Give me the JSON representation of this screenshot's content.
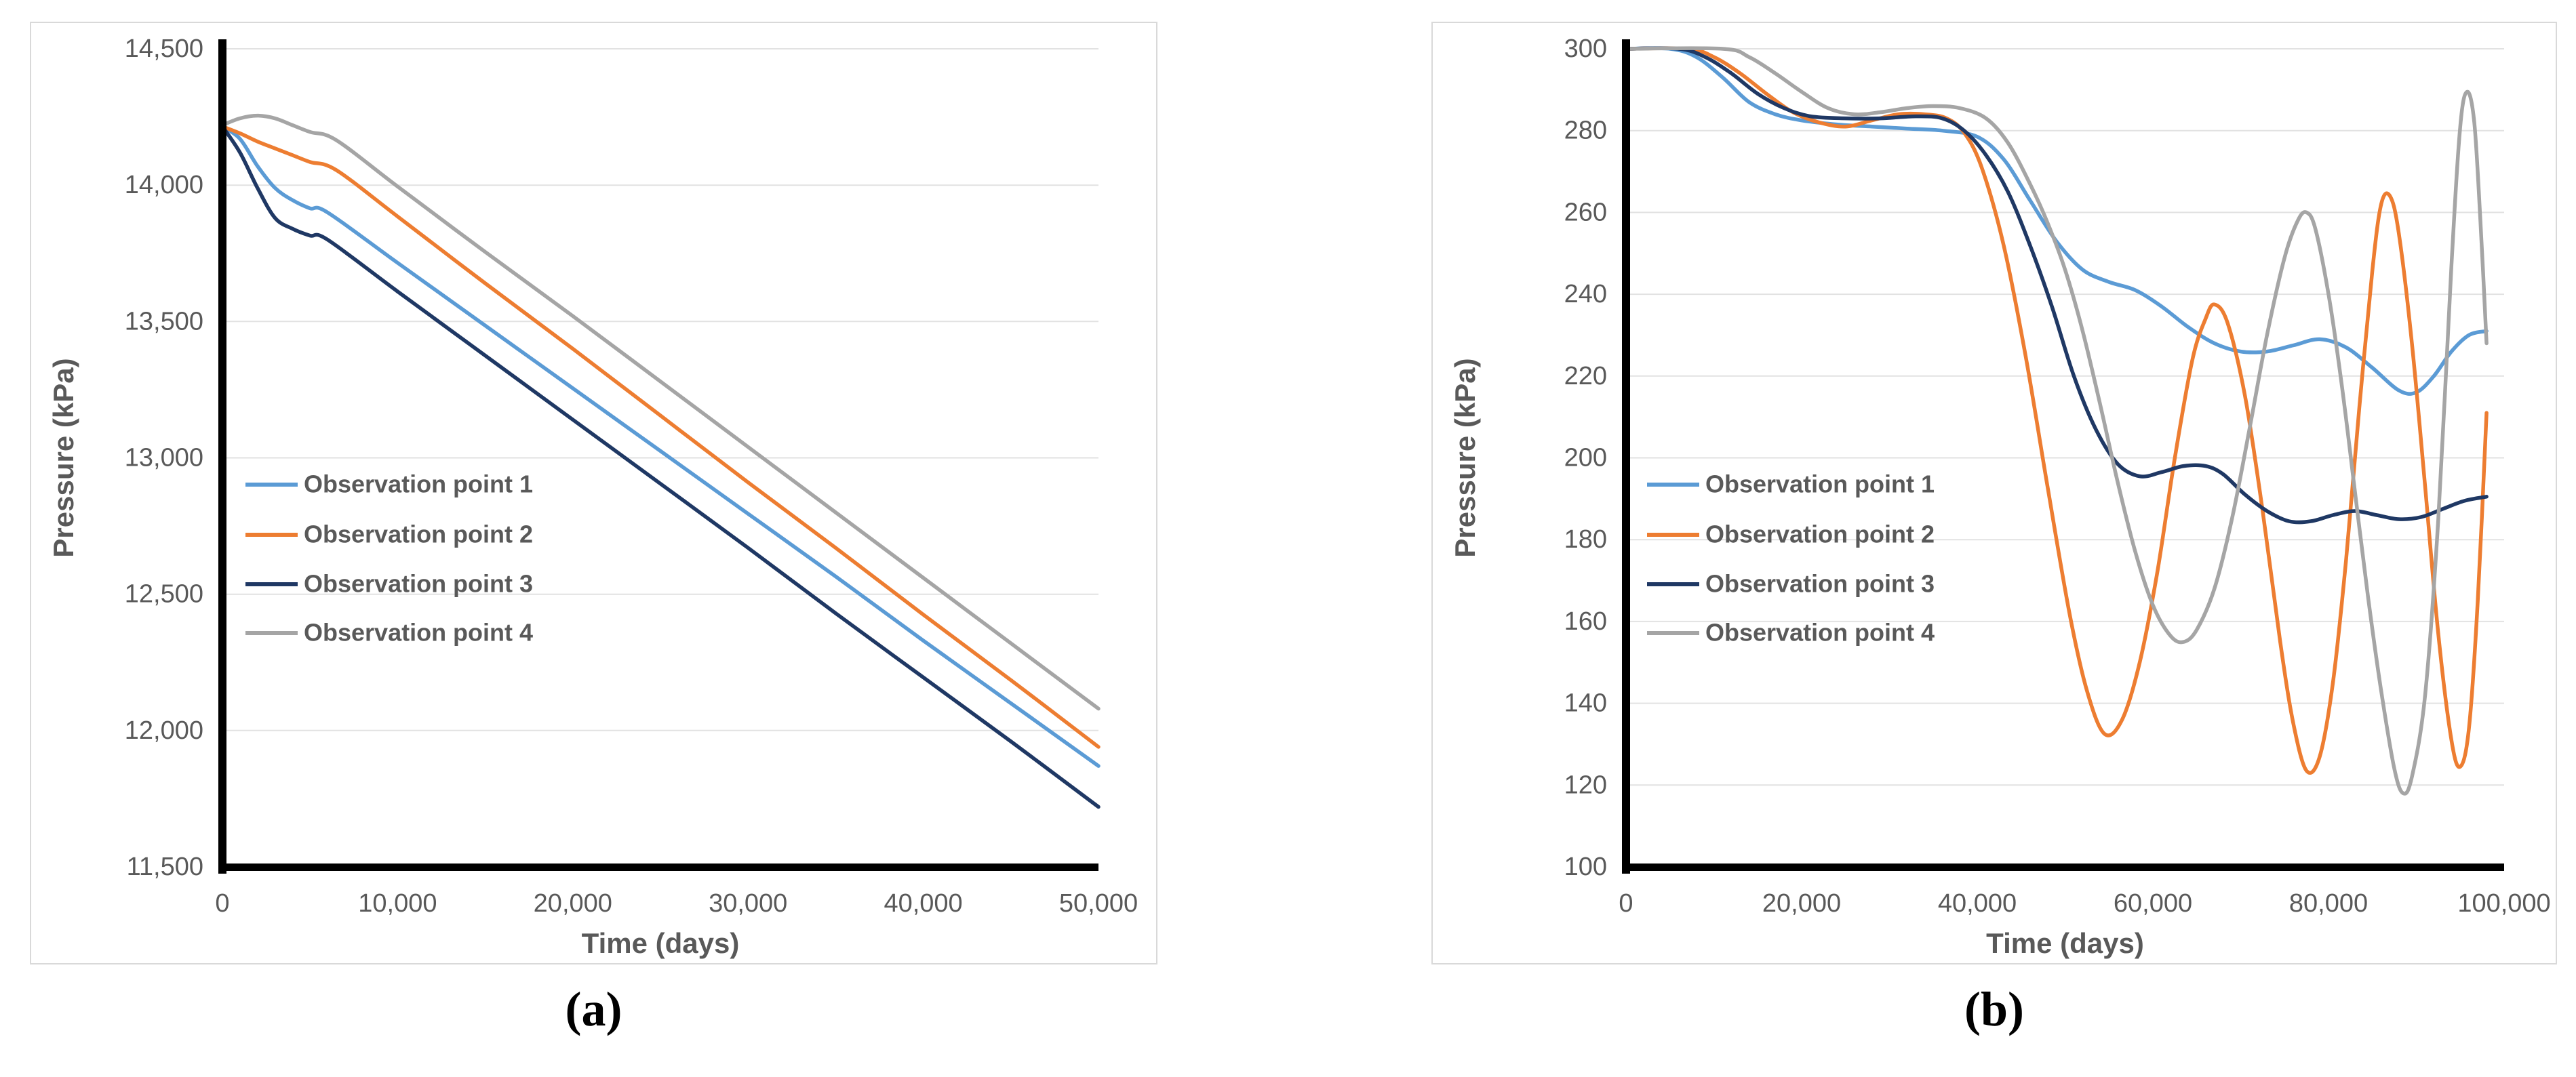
{
  "figure": {
    "captions": {
      "a": "(a)",
      "b": "(b)"
    }
  },
  "style": {
    "background": "#ffffff",
    "panel_border": "#d9d9d9",
    "axis_color": "#000000",
    "grid_color": "#e2e2e2",
    "tick_label_color": "#595959",
    "axis_title_color": "#595959",
    "legend_text_color": "#595959"
  },
  "chart_data": [
    {
      "id": "a",
      "type": "line",
      "title": "",
      "xlabel": "Time (days)",
      "ylabel": "Pressure (kPa)",
      "xlim": [
        0,
        50000
      ],
      "ylim": [
        11500,
        14500
      ],
      "grid": true,
      "legend_position": "inside-left",
      "x_ticks": [
        {
          "v": 0,
          "label": "0"
        },
        {
          "v": 10000,
          "label": "10,000"
        },
        {
          "v": 20000,
          "label": "20,000"
        },
        {
          "v": 30000,
          "label": "30,000"
        },
        {
          "v": 40000,
          "label": "40,000"
        },
        {
          "v": 50000,
          "label": "50,000"
        }
      ],
      "y_ticks": [
        {
          "v": 14500,
          "label": "14,500"
        },
        {
          "v": 14000,
          "label": "14,000"
        },
        {
          "v": 13500,
          "label": "13,500"
        },
        {
          "v": 13000,
          "label": "13,000"
        },
        {
          "v": 12500,
          "label": "12,500"
        },
        {
          "v": 12000,
          "label": "12,000"
        },
        {
          "v": 11500,
          "label": "11,500"
        }
      ],
      "series": [
        {
          "name": "Observation point 1",
          "color": "#5B9BD5",
          "points": [
            [
              0,
              14215
            ],
            [
              1000,
              14170
            ],
            [
              2000,
              14070
            ],
            [
              3000,
              13990
            ],
            [
              4000,
              13945
            ],
            [
              5000,
              13915
            ],
            [
              6000,
              13900
            ],
            [
              10000,
              13715
            ],
            [
              15000,
              13485
            ],
            [
              20000,
              13255
            ],
            [
              25000,
              13025
            ],
            [
              30000,
              12795
            ],
            [
              35000,
              12565
            ],
            [
              40000,
              12330
            ],
            [
              45000,
              12100
            ],
            [
              50000,
              11870
            ]
          ]
        },
        {
          "name": "Observation point 2",
          "color": "#ED7D31",
          "points": [
            [
              0,
              14215
            ],
            [
              1000,
              14190
            ],
            [
              2000,
              14160
            ],
            [
              3000,
              14135
            ],
            [
              4000,
              14110
            ],
            [
              5000,
              14085
            ],
            [
              6500,
              14055
            ],
            [
              10000,
              13885
            ],
            [
              15000,
              13640
            ],
            [
              20000,
              13400
            ],
            [
              25000,
              13155
            ],
            [
              30000,
              12910
            ],
            [
              35000,
              12670
            ],
            [
              40000,
              12425
            ],
            [
              45000,
              12185
            ],
            [
              50000,
              11940
            ]
          ]
        },
        {
          "name": "Observation point 3",
          "color": "#1F3864",
          "points": [
            [
              0,
              14215
            ],
            [
              1000,
              14120
            ],
            [
              2000,
              13990
            ],
            [
              3000,
              13880
            ],
            [
              4000,
              13840
            ],
            [
              5000,
              13815
            ],
            [
              6000,
              13800
            ],
            [
              10000,
              13610
            ],
            [
              15000,
              13375
            ],
            [
              20000,
              13140
            ],
            [
              25000,
              12905
            ],
            [
              30000,
              12670
            ],
            [
              35000,
              12430
            ],
            [
              40000,
              12195
            ],
            [
              45000,
              11960
            ],
            [
              50000,
              11720
            ]
          ]
        },
        {
          "name": "Observation point 4",
          "color": "#A5A5A5",
          "points": [
            [
              0,
              14220
            ],
            [
              1000,
              14245
            ],
            [
              2000,
              14255
            ],
            [
              3000,
              14245
            ],
            [
              4000,
              14220
            ],
            [
              5000,
              14195
            ],
            [
              6500,
              14165
            ],
            [
              10000,
              13995
            ],
            [
              15000,
              13755
            ],
            [
              20000,
              13520
            ],
            [
              25000,
              13280
            ],
            [
              30000,
              13040
            ],
            [
              35000,
              12800
            ],
            [
              40000,
              12560
            ],
            [
              45000,
              12320
            ],
            [
              50000,
              12080
            ]
          ]
        }
      ]
    },
    {
      "id": "b",
      "type": "line",
      "title": "",
      "xlabel": "Time (days)",
      "ylabel": "Pressure (kPa)",
      "xlim": [
        0,
        100000
      ],
      "ylim": [
        100,
        300
      ],
      "grid": true,
      "legend_position": "inside-left",
      "x_ticks": [
        {
          "v": 0,
          "label": "0"
        },
        {
          "v": 20000,
          "label": "20,000"
        },
        {
          "v": 40000,
          "label": "40,000"
        },
        {
          "v": 60000,
          "label": "60,000"
        },
        {
          "v": 80000,
          "label": "80,000"
        },
        {
          "v": 100000,
          "label": "100,000"
        }
      ],
      "y_ticks": [
        {
          "v": 300,
          "label": "300"
        },
        {
          "v": 280,
          "label": "280"
        },
        {
          "v": 260,
          "label": "260"
        },
        {
          "v": 240,
          "label": "240"
        },
        {
          "v": 220,
          "label": "220"
        },
        {
          "v": 200,
          "label": "200"
        },
        {
          "v": 180,
          "label": "180"
        },
        {
          "v": 160,
          "label": "160"
        },
        {
          "v": 140,
          "label": "140"
        },
        {
          "v": 120,
          "label": "120"
        },
        {
          "v": 100,
          "label": "100"
        }
      ],
      "series": [
        {
          "name": "Observation point 1",
          "color": "#5B9BD5",
          "points": [
            [
              0,
              300
            ],
            [
              5000,
              300
            ],
            [
              8000,
              298
            ],
            [
              11000,
              293
            ],
            [
              14000,
              287
            ],
            [
              17000,
              284
            ],
            [
              20000,
              282.5
            ],
            [
              24000,
              281.5
            ],
            [
              28000,
              281
            ],
            [
              32000,
              280.5
            ],
            [
              36000,
              280
            ],
            [
              40000,
              278.5
            ],
            [
              43000,
              273
            ],
            [
              46000,
              263
            ],
            [
              49000,
              253
            ],
            [
              52000,
              246
            ],
            [
              55000,
              243
            ],
            [
              58000,
              241
            ],
            [
              61000,
              237
            ],
            [
              64000,
              232
            ],
            [
              67000,
              228
            ],
            [
              70000,
              226
            ],
            [
              73000,
              226
            ],
            [
              76000,
              227.5
            ],
            [
              79000,
              229
            ],
            [
              82000,
              227
            ],
            [
              85000,
              222
            ],
            [
              88000,
              216.5
            ],
            [
              90000,
              216
            ],
            [
              92000,
              220
            ],
            [
              94000,
              226
            ],
            [
              96000,
              230
            ],
            [
              98000,
              231
            ]
          ]
        },
        {
          "name": "Observation point 2",
          "color": "#ED7D31",
          "points": [
            [
              0,
              300
            ],
            [
              7000,
              300
            ],
            [
              10000,
              298
            ],
            [
              13000,
              294
            ],
            [
              16000,
              289
            ],
            [
              19000,
              284.5
            ],
            [
              22000,
              282
            ],
            [
              25000,
              281
            ],
            [
              28000,
              282.5
            ],
            [
              31000,
              284
            ],
            [
              34000,
              284
            ],
            [
              36500,
              283
            ],
            [
              38500,
              279.5
            ],
            [
              40500,
              271
            ],
            [
              43000,
              252
            ],
            [
              45500,
              225
            ],
            [
              48000,
              193
            ],
            [
              50500,
              162
            ],
            [
              52500,
              143
            ],
            [
              54500,
              132.5
            ],
            [
              56500,
              136
            ],
            [
              58500,
              150
            ],
            [
              60500,
              172
            ],
            [
              62500,
              200
            ],
            [
              64500,
              224
            ],
            [
              66000,
              234
            ],
            [
              67000,
              237.5
            ],
            [
              68500,
              233
            ],
            [
              70500,
              215
            ],
            [
              72500,
              187
            ],
            [
              74500,
              155
            ],
            [
              76000,
              135
            ],
            [
              77500,
              123.5
            ],
            [
              79000,
              127
            ],
            [
              80500,
              145
            ],
            [
              82000,
              175
            ],
            [
              83500,
              212
            ],
            [
              85000,
              246
            ],
            [
              86000,
              262
            ],
            [
              87000,
              264
            ],
            [
              88000,
              255
            ],
            [
              89500,
              228
            ],
            [
              91000,
              193
            ],
            [
              92500,
              157
            ],
            [
              94000,
              131
            ],
            [
              95000,
              124.5
            ],
            [
              96000,
              134
            ],
            [
              97000,
              165
            ],
            [
              98000,
              211
            ]
          ]
        },
        {
          "name": "Observation point 3",
          "color": "#1F3864",
          "points": [
            [
              0,
              300
            ],
            [
              6000,
              300
            ],
            [
              9000,
              298
            ],
            [
              12000,
              294
            ],
            [
              15000,
              289
            ],
            [
              18000,
              285.5
            ],
            [
              21000,
              283.5
            ],
            [
              25000,
              283
            ],
            [
              29000,
              283
            ],
            [
              33000,
              283.5
            ],
            [
              36000,
              283
            ],
            [
              38500,
              280
            ],
            [
              41000,
              274
            ],
            [
              43500,
              265
            ],
            [
              46000,
              252
            ],
            [
              48500,
              237
            ],
            [
              51000,
              220
            ],
            [
              53500,
              207
            ],
            [
              56000,
              198.5
            ],
            [
              58500,
              195.5
            ],
            [
              61000,
              196.5
            ],
            [
              63500,
              198
            ],
            [
              66000,
              198
            ],
            [
              68000,
              196
            ],
            [
              70500,
              191
            ],
            [
              73000,
              187
            ],
            [
              75500,
              184.5
            ],
            [
              78000,
              184.5
            ],
            [
              80500,
              186
            ],
            [
              83000,
              187
            ],
            [
              85500,
              186
            ],
            [
              88000,
              185
            ],
            [
              90500,
              185.5
            ],
            [
              93000,
              187.5
            ],
            [
              95500,
              189.5
            ],
            [
              98000,
              190.5
            ]
          ]
        },
        {
          "name": "Observation point 4",
          "color": "#A5A5A5",
          "points": [
            [
              0,
              300
            ],
            [
              11000,
              300
            ],
            [
              14000,
              298
            ],
            [
              17000,
              294
            ],
            [
              20000,
              289.5
            ],
            [
              23000,
              285.5
            ],
            [
              26000,
              284
            ],
            [
              29000,
              284.5
            ],
            [
              32000,
              285.5
            ],
            [
              35000,
              286
            ],
            [
              38000,
              285.5
            ],
            [
              41000,
              283
            ],
            [
              43500,
              277
            ],
            [
              46000,
              267
            ],
            [
              48000,
              257.5
            ],
            [
              50000,
              246
            ],
            [
              52000,
              231
            ],
            [
              54000,
              213
            ],
            [
              56000,
              194
            ],
            [
              58000,
              177
            ],
            [
              60000,
              164
            ],
            [
              62000,
              156.5
            ],
            [
              63500,
              155
            ],
            [
              65000,
              158
            ],
            [
              67000,
              168
            ],
            [
              69000,
              185
            ],
            [
              71000,
              207
            ],
            [
              73000,
              230
            ],
            [
              75000,
              249
            ],
            [
              76500,
              258
            ],
            [
              77500,
              260
            ],
            [
              78500,
              256
            ],
            [
              80000,
              240
            ],
            [
              81500,
              218
            ],
            [
              83000,
              192
            ],
            [
              84500,
              166
            ],
            [
              86000,
              143
            ],
            [
              87500,
              124
            ],
            [
              88500,
              118
            ],
            [
              89500,
              122
            ],
            [
              91000,
              142
            ],
            [
              92500,
              185
            ],
            [
              94000,
              247
            ],
            [
              95000,
              281
            ],
            [
              95800,
              289.5
            ],
            [
              96600,
              282
            ],
            [
              97300,
              258
            ],
            [
              98000,
              228
            ]
          ]
        }
      ]
    }
  ]
}
